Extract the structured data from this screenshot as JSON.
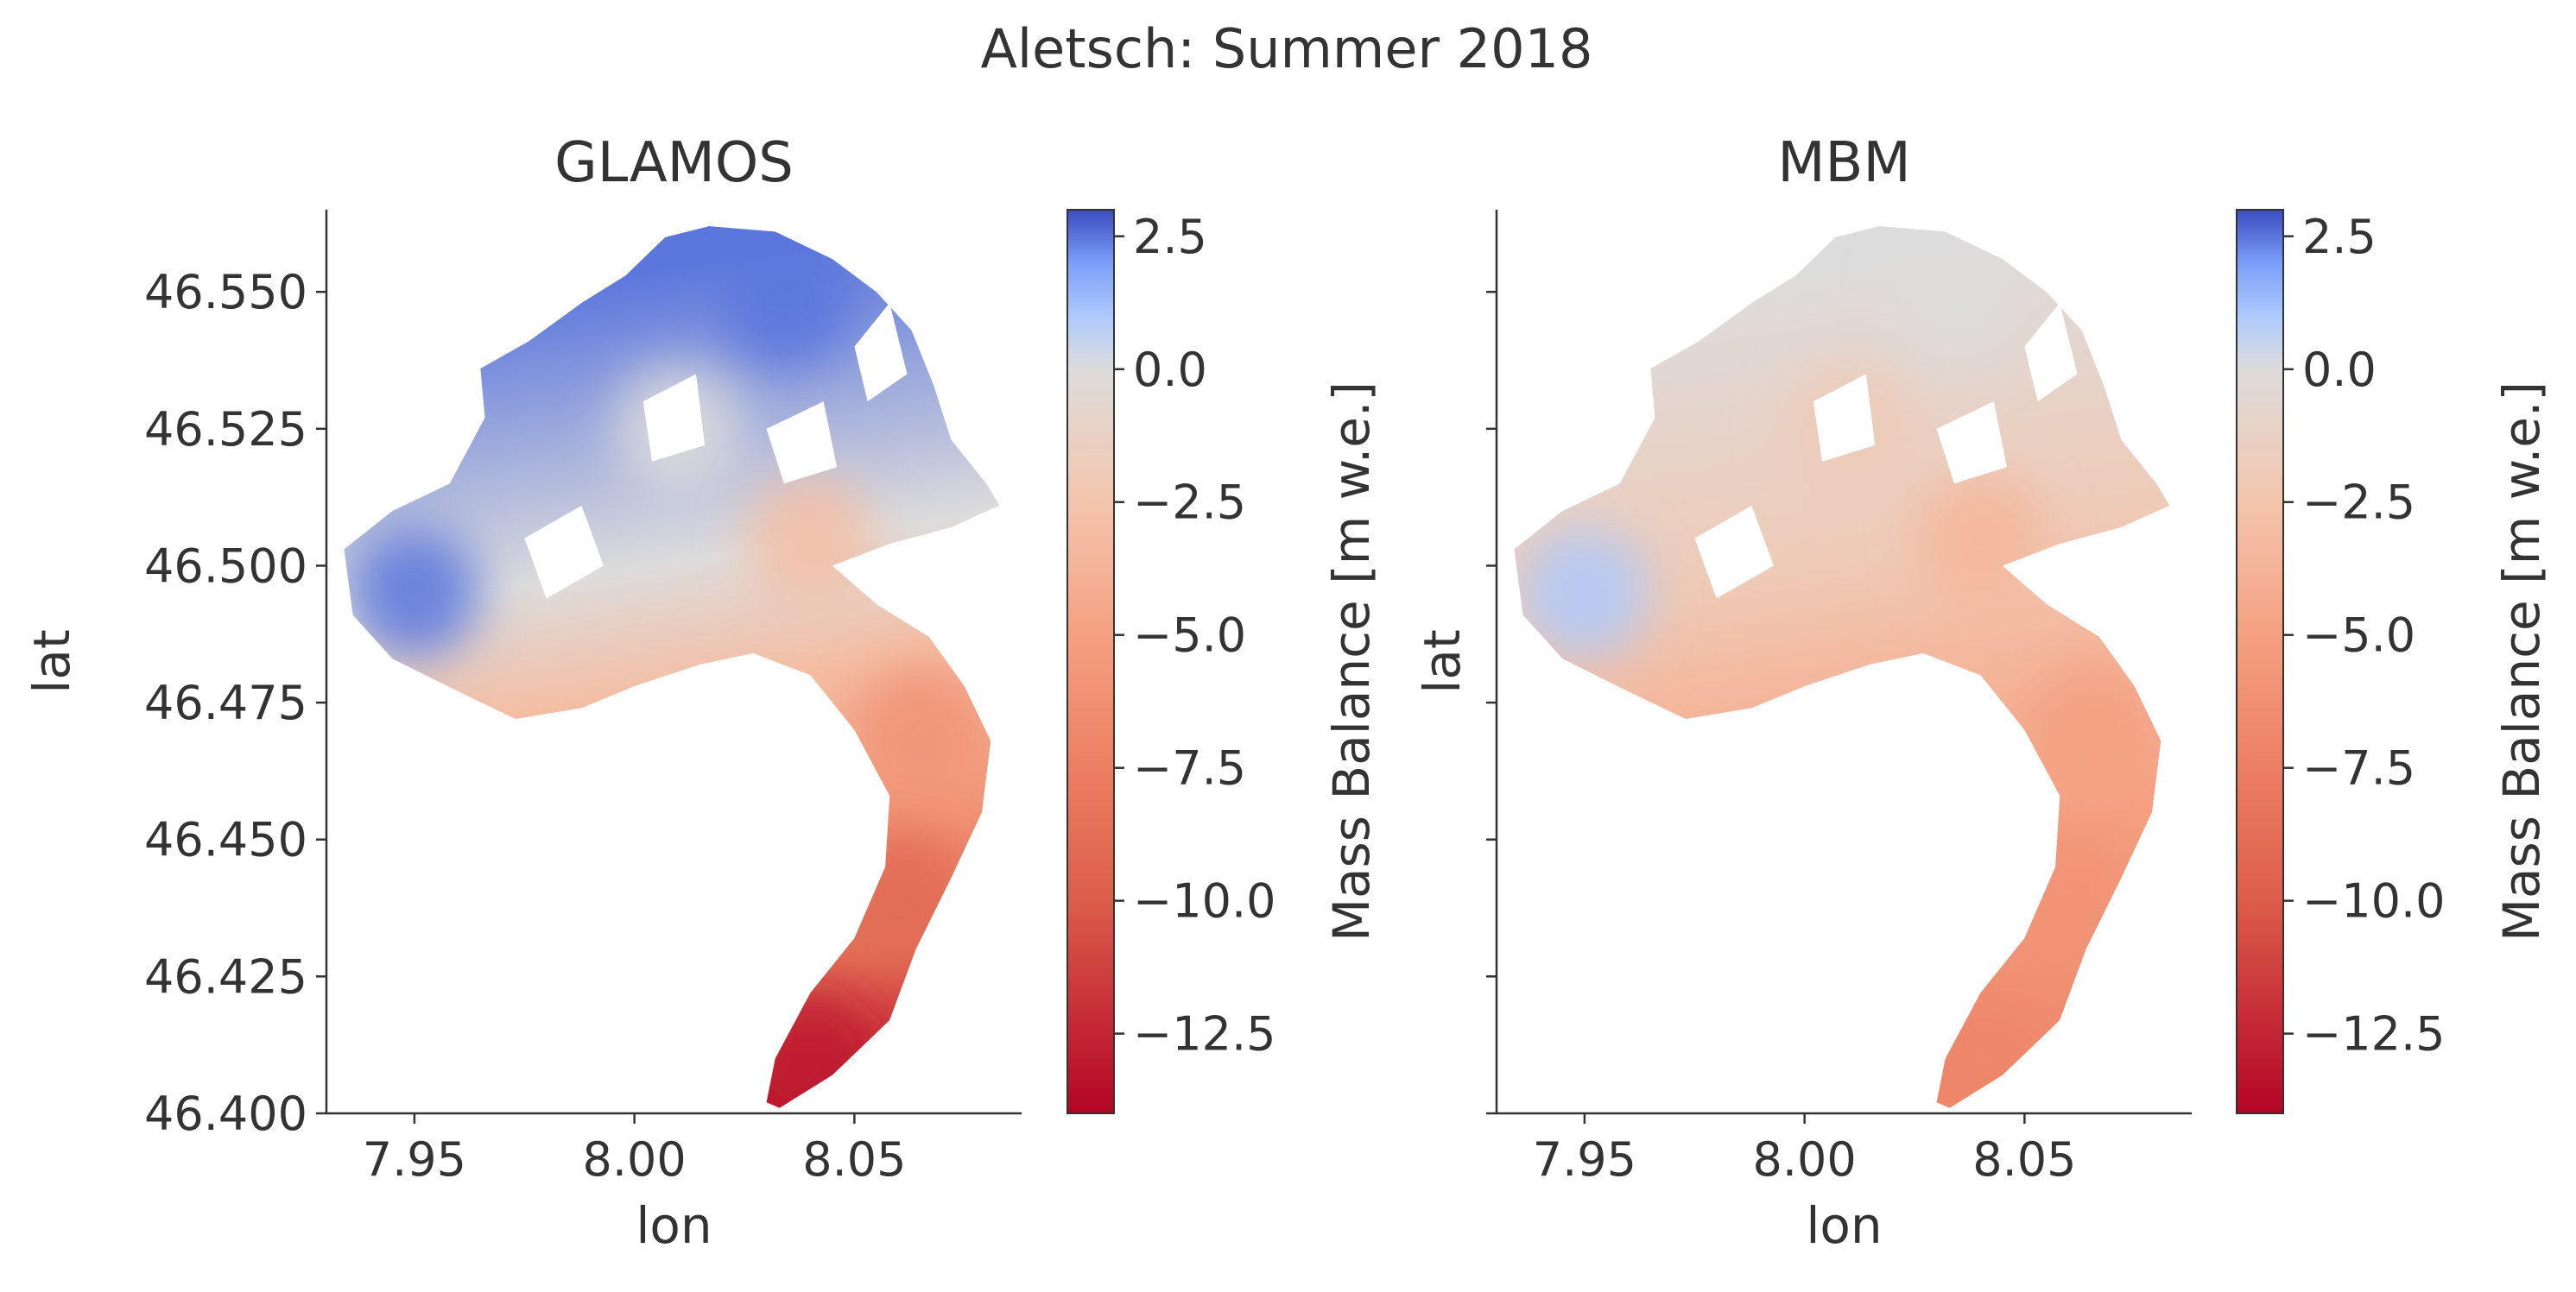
{
  "figure": {
    "suptitle": "Aletsch: Summer 2018"
  },
  "colorscale": {
    "name": "coolwarm_r",
    "stops": [
      [
        -14.0,
        "#b40426"
      ],
      [
        -10.0,
        "#dc5d4a"
      ],
      [
        -7.5,
        "#ec7f63"
      ],
      [
        -5.0,
        "#f5a081"
      ],
      [
        -2.5,
        "#f4c5ad"
      ],
      [
        0.0,
        "#dddcdc"
      ],
      [
        1.0,
        "#aec9fc"
      ],
      [
        2.0,
        "#7b9ff9"
      ],
      [
        3.0,
        "#3b4cc0"
      ]
    ]
  },
  "chart_data": [
    {
      "type": "heatmap",
      "title": "GLAMOS",
      "xlabel": "lon",
      "ylabel": "lat",
      "xlim": [
        7.93,
        8.088
      ],
      "ylim": [
        46.4,
        46.565
      ],
      "xticks": [
        "7.95",
        "8.00",
        "8.05"
      ],
      "xtick_values": [
        7.95,
        8.0,
        8.05
      ],
      "yticks": [
        "46.550",
        "46.525",
        "46.500",
        "46.475",
        "46.450",
        "46.425",
        "46.400"
      ],
      "ytick_values": [
        46.55,
        46.525,
        46.5,
        46.475,
        46.45,
        46.425,
        46.4
      ],
      "colorbar": {
        "label": "Mass Balance [m w.e.]",
        "range": [
          -14.0,
          3.0
        ],
        "ticks": [
          "2.5",
          "0.0",
          "−2.5",
          "−5.0",
          "−7.5",
          "−10.0",
          "−12.5"
        ],
        "tick_values": [
          2.5,
          0.0,
          -2.5,
          -5.0,
          -7.5,
          -10.0,
          -12.5
        ]
      },
      "field_samples": {
        "upper_accumulation_basin": 2.5,
        "western_firn_field": 2.5,
        "central_divide": 0.0,
        "main_trunk_upper": -3.0,
        "main_trunk_middle": -6.0,
        "tongue": -9.0,
        "terminus": -13.0
      }
    },
    {
      "type": "heatmap",
      "title": "MBM",
      "xlabel": "lon",
      "ylabel": "lat",
      "xlim": [
        7.93,
        8.088
      ],
      "ylim": [
        46.4,
        46.565
      ],
      "xticks": [
        "7.95",
        "8.00",
        "8.05"
      ],
      "xtick_values": [
        7.95,
        8.0,
        8.05
      ],
      "yticks": [],
      "ytick_values": [
        46.55,
        46.525,
        46.5,
        46.475,
        46.45,
        46.425,
        46.4
      ],
      "colorbar": {
        "label": "Mass Balance [m w.e.]",
        "range": [
          -14.0,
          3.0
        ],
        "ticks": [
          "2.5",
          "0.0",
          "−2.5",
          "−5.0",
          "−7.5",
          "−10.0",
          "−12.5"
        ],
        "tick_values": [
          2.5,
          0.0,
          -2.5,
          -5.0,
          -7.5,
          -10.0,
          -12.5
        ]
      },
      "field_samples": {
        "upper_accumulation_basin": 0.0,
        "western_firn_field": 1.0,
        "central_divide": -2.0,
        "main_trunk_upper": -3.5,
        "main_trunk_middle": -5.0,
        "tongue": -6.0,
        "terminus": -7.0
      }
    }
  ]
}
